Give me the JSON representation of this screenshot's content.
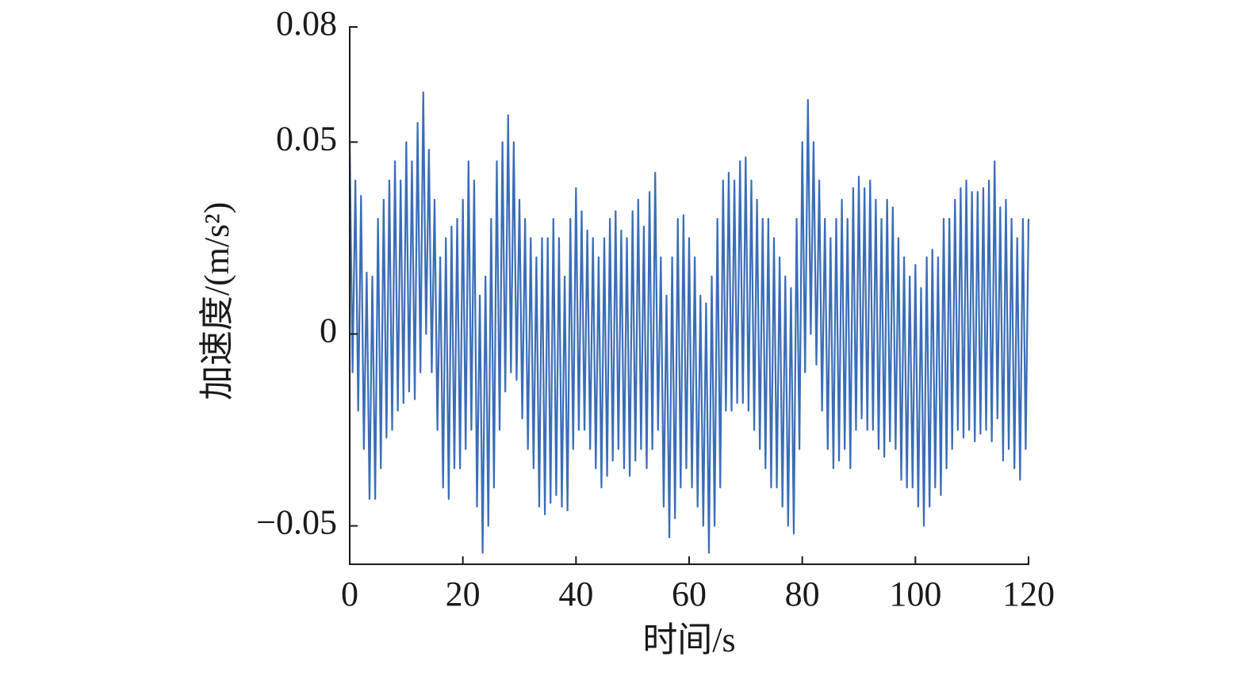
{
  "chart_data": {
    "type": "line",
    "x_label": "时间/s",
    "y_label": "加速度/(m/s²)",
    "xlim": [
      0,
      120
    ],
    "xticks": [
      0,
      20,
      40,
      60,
      80,
      100,
      120
    ],
    "ylim": [
      -0.06,
      0.08
    ],
    "yticks": [
      0.08,
      0.05,
      0,
      {
        "value": -0.05,
        "label": "−0.05"
      }
    ],
    "grid": false,
    "x": [
      0,
      0.5,
      1,
      1.5,
      2,
      2.5,
      3,
      3.5,
      4,
      4.5,
      5,
      5.5,
      6,
      6.5,
      7,
      7.5,
      8,
      8.5,
      9,
      9.5,
      10,
      10.5,
      11,
      11.5,
      12,
      12.5,
      13,
      13.5,
      14,
      14.5,
      15,
      15.5,
      16,
      16.5,
      17,
      17.5,
      18,
      18.5,
      19,
      19.5,
      20,
      20.5,
      21,
      21.5,
      22,
      22.5,
      23,
      23.5,
      24,
      24.5,
      25,
      25.5,
      26,
      26.5,
      27,
      27.5,
      28,
      28.5,
      29,
      29.5,
      30,
      30.5,
      31,
      31.5,
      32,
      32.5,
      33,
      33.5,
      34,
      34.5,
      35,
      35.5,
      36,
      36.5,
      37,
      37.5,
      38,
      38.5,
      39,
      39.5,
      40,
      40.5,
      41,
      41.5,
      42,
      42.5,
      43,
      43.5,
      44,
      44.5,
      45,
      45.5,
      46,
      46.5,
      47,
      47.5,
      48,
      48.5,
      49,
      49.5,
      50,
      50.5,
      51,
      51.5,
      52,
      52.5,
      53,
      53.5,
      54,
      54.5,
      55,
      55.5,
      56,
      56.5,
      57,
      57.5,
      58,
      58.5,
      59,
      59.5,
      60,
      60.5,
      61,
      61.5,
      62,
      62.5,
      63,
      63.5,
      64,
      64.5,
      65,
      65.5,
      66,
      66.5,
      67,
      67.5,
      68,
      68.5,
      69,
      69.5,
      70,
      70.5,
      71,
      71.5,
      72,
      72.5,
      73,
      73.5,
      74,
      74.5,
      75,
      75.5,
      76,
      76.5,
      77,
      77.5,
      78,
      78.5,
      79,
      79.5,
      80,
      80.5,
      81,
      81.5,
      82,
      82.5,
      83,
      83.5,
      84,
      84.5,
      85,
      85.5,
      86,
      86.5,
      87,
      87.5,
      88,
      88.5,
      89,
      89.5,
      90,
      90.5,
      91,
      91.5,
      92,
      92.5,
      93,
      93.5,
      94,
      94.5,
      95,
      95.5,
      96,
      96.5,
      97,
      97.5,
      98,
      98.5,
      99,
      99.5,
      100,
      100.5,
      101,
      101.5,
      102,
      102.5,
      103,
      103.5,
      104,
      104.5,
      105,
      105.5,
      106,
      106.5,
      107,
      107.5,
      108,
      108.5,
      109,
      109.5,
      110,
      110.5,
      111,
      111.5,
      112,
      112.5,
      113,
      113.5,
      114,
      114.5,
      115,
      115.5,
      116,
      116.5,
      117,
      117.5,
      118,
      118.5,
      119,
      119.5,
      120
    ],
    "series": [
      {
        "color": "#3a6db7",
        "values": [
          0.05,
          -0.01,
          0.04,
          -0.02,
          0.036,
          -0.03,
          0.016,
          -0.043,
          0.015,
          -0.043,
          0.03,
          -0.035,
          0.035,
          -0.027,
          0.04,
          -0.025,
          0.045,
          -0.02,
          0.04,
          -0.018,
          0.05,
          -0.015,
          0.045,
          -0.017,
          0.055,
          -0.01,
          0.063,
          0.0,
          0.048,
          -0.01,
          0.035,
          -0.025,
          0.02,
          -0.04,
          0.025,
          -0.043,
          0.028,
          -0.035,
          0.03,
          -0.035,
          0.035,
          -0.03,
          0.045,
          -0.025,
          0.04,
          -0.045,
          0.01,
          -0.057,
          0.015,
          -0.05,
          0.03,
          -0.04,
          0.045,
          -0.025,
          0.05,
          -0.015,
          0.057,
          -0.01,
          0.05,
          -0.012,
          0.035,
          -0.022,
          0.03,
          -0.03,
          0.025,
          -0.035,
          0.02,
          -0.045,
          0.025,
          -0.047,
          0.025,
          -0.044,
          0.03,
          -0.042,
          0.025,
          -0.045,
          0.015,
          -0.046,
          0.03,
          -0.03,
          0.038,
          -0.025,
          0.032,
          -0.025,
          0.027,
          -0.03,
          0.025,
          -0.035,
          0.02,
          -0.04,
          0.025,
          -0.037,
          0.03,
          -0.033,
          0.032,
          -0.03,
          0.027,
          -0.035,
          0.025,
          -0.037,
          0.032,
          -0.033,
          0.035,
          -0.03,
          0.028,
          -0.035,
          0.037,
          -0.03,
          0.042,
          -0.025,
          0.02,
          -0.045,
          0.01,
          -0.053,
          0.02,
          -0.048,
          0.03,
          -0.04,
          0.031,
          -0.035,
          0.025,
          -0.04,
          0.02,
          -0.045,
          0.01,
          -0.05,
          0.008,
          -0.057,
          0.015,
          -0.05,
          0.03,
          -0.04,
          0.04,
          -0.02,
          0.042,
          -0.02,
          0.04,
          -0.018,
          0.045,
          -0.018,
          0.046,
          -0.02,
          0.04,
          -0.025,
          0.035,
          -0.03,
          0.03,
          -0.035,
          0.03,
          -0.04,
          0.025,
          -0.04,
          0.02,
          -0.045,
          0.015,
          -0.05,
          0.012,
          -0.052,
          0.03,
          -0.03,
          0.05,
          -0.01,
          0.061,
          0.0,
          0.05,
          -0.008,
          0.04,
          -0.02,
          0.03,
          -0.03,
          0.025,
          -0.035,
          0.03,
          -0.033,
          0.035,
          -0.03,
          0.03,
          -0.035,
          0.038,
          -0.025,
          0.041,
          -0.022,
          0.038,
          -0.025,
          0.04,
          -0.025,
          0.035,
          -0.03,
          0.03,
          -0.032,
          0.035,
          -0.028,
          0.033,
          -0.03,
          0.025,
          -0.038,
          0.02,
          -0.04,
          0.015,
          -0.04,
          0.018,
          -0.045,
          0.012,
          -0.05,
          0.02,
          -0.045,
          0.022,
          -0.04,
          0.02,
          -0.042,
          0.03,
          -0.035,
          0.03,
          -0.03,
          0.035,
          -0.025,
          0.038,
          -0.027,
          0.04,
          -0.025,
          0.037,
          -0.028,
          0.037,
          -0.026,
          0.038,
          -0.025,
          0.04,
          -0.028,
          0.045,
          -0.022,
          0.033,
          -0.033,
          0.035,
          -0.03,
          0.03,
          -0.035,
          0.025,
          -0.038,
          0.03,
          -0.03,
          0.03
        ]
      }
    ]
  }
}
